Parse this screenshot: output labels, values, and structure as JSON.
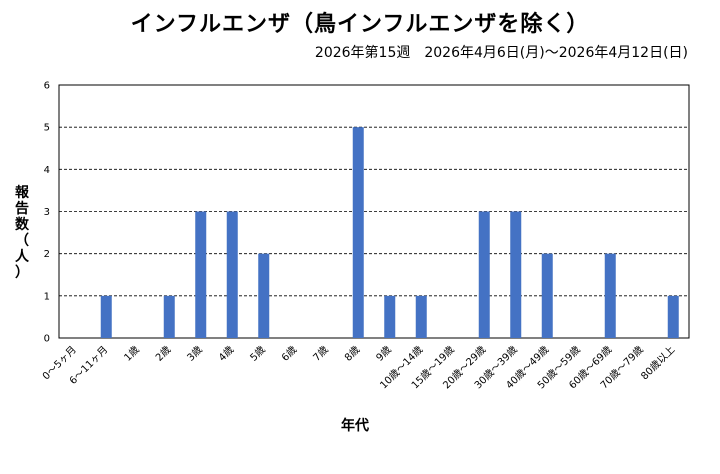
{
  "chart_data": {
    "type": "bar",
    "title": "インフルエンザ（鳥インフルエンザを除く）",
    "subtitle": "2026年第15週　2026年4月6日(月)〜2026年4月12日(日)",
    "xlabel": "年代",
    "ylabel": "報告数（人）",
    "ylim": [
      0,
      6
    ],
    "yticks": [
      0,
      1,
      2,
      3,
      4,
      5,
      6
    ],
    "grid": true,
    "bar_color": "#4472c4",
    "categories": [
      "0〜5ヶ月",
      "6〜11ヶ月",
      "1歳",
      "2歳",
      "3歳",
      "4歳",
      "5歳",
      "6歳",
      "7歳",
      "8歳",
      "9歳",
      "10歳〜14歳",
      "15歳〜19歳",
      "20歳〜29歳",
      "30歳〜39歳",
      "40歳〜49歳",
      "50歳〜59歳",
      "60歳〜69歳",
      "70歳〜79歳",
      "80歳以上"
    ],
    "values": [
      0,
      1,
      0,
      1,
      3,
      3,
      2,
      0,
      0,
      5,
      1,
      1,
      0,
      3,
      3,
      2,
      0,
      2,
      0,
      1
    ]
  }
}
